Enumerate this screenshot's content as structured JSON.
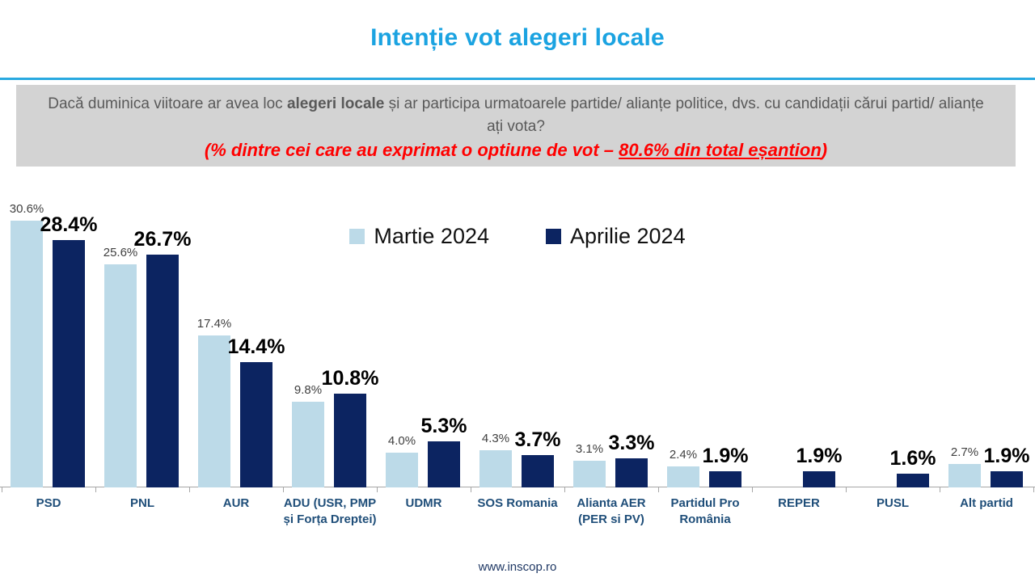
{
  "header": {
    "title": "Intenție vot alegeri locale"
  },
  "question": {
    "line1_prefix": "Dacă duminica viitoare ar avea loc ",
    "line1_bold": "alegeri locale",
    "line1_suffix": " și ar participa urmatoarele partide/ alianțe politice, dvs. cu candidații cărui partid/ alianțe ați vota?",
    "line2_prefix": "(% dintre cei care au exprimat o optiune de vot – ",
    "line2_emphasis": "80.6% din total eșantion",
    "line2_suffix": ")"
  },
  "legend": [
    {
      "label": "Martie 2024",
      "color": "#BCDAE8"
    },
    {
      "label": "Aprilie 2024",
      "color": "#0C2461"
    }
  ],
  "chart_data": {
    "type": "bar",
    "title": "Intenție vot alegeri locale",
    "categories": [
      "PSD",
      "PNL",
      "AUR",
      "ADU (USR, PMP și Forța Dreptei)",
      "UDMR",
      "SOS Romania",
      "Alianta AER (PER si PV)",
      "Partidul Pro România",
      "REPER",
      "PUSL",
      "Alt partid"
    ],
    "series": [
      {
        "name": "Martie 2024",
        "color": "#BCDAE8",
        "values": [
          30.6,
          25.6,
          17.4,
          9.8,
          4.0,
          4.3,
          3.1,
          2.4,
          null,
          null,
          2.7
        ]
      },
      {
        "name": "Aprilie 2024",
        "color": "#0C2461",
        "values": [
          28.4,
          26.7,
          14.4,
          10.8,
          5.3,
          3.7,
          3.3,
          1.9,
          1.9,
          1.6,
          1.9
        ]
      }
    ],
    "value_suffix": "%",
    "xlabel": "",
    "ylabel": "",
    "ylim": [
      0,
      32
    ],
    "grid": false,
    "legend_position": "top-center",
    "axis_color": "#A6A6A6"
  },
  "footer": {
    "url": "www.inscop.ro"
  }
}
